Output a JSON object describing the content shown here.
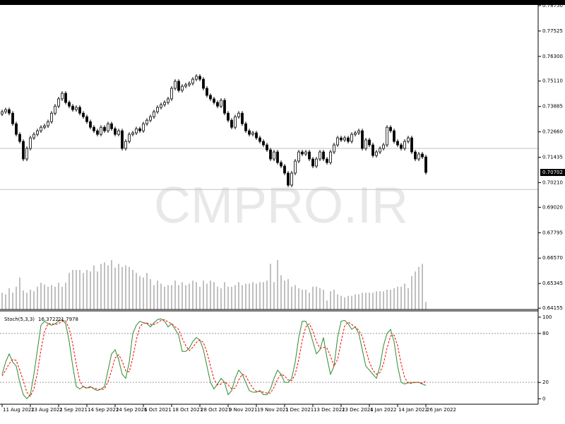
{
  "chart_data": [
    {
      "type": "candlestick",
      "watermark": "CMPRO.IR",
      "categories": [
        "11 Aug 2021",
        null,
        null,
        null,
        null,
        null,
        null,
        null,
        "23 Aug 2021",
        null,
        null,
        null,
        null,
        null,
        null,
        null,
        "2 Sep 2021",
        null,
        null,
        null,
        null,
        null,
        null,
        null,
        "14 Sep 2021",
        null,
        null,
        null,
        null,
        null,
        null,
        null,
        "24 Sep 2021",
        null,
        null,
        null,
        null,
        null,
        null,
        null,
        "6 Oct 2021",
        null,
        null,
        null,
        null,
        null,
        null,
        null,
        "18 Oct 2021",
        null,
        null,
        null,
        null,
        null,
        null,
        null,
        "28 Oct 2021",
        null,
        null,
        null,
        null,
        null,
        null,
        null,
        "9 Nov 2021",
        null,
        null,
        null,
        null,
        null,
        null,
        null,
        "19 Nov 2021",
        null,
        null,
        null,
        null,
        null,
        null,
        null,
        "1 Dec 2021",
        null,
        null,
        null,
        null,
        null,
        null,
        null,
        "13 Dec 2021",
        null,
        null,
        null,
        null,
        null,
        null,
        null,
        "23 Dec 2021",
        null,
        null,
        null,
        null,
        null,
        null,
        null,
        "4 Jan 2022",
        null,
        null,
        null,
        null,
        null,
        null,
        null,
        "14 Jan 2022",
        null,
        null,
        null,
        null,
        null,
        null,
        null,
        "26 Jan 2022"
      ],
      "open": [
        0.7352,
        0.7363,
        0.7373,
        0.7356,
        0.7305,
        0.7254,
        0.722,
        0.7135,
        0.7186,
        0.7237,
        0.7254,
        0.7271,
        0.7288,
        0.7295,
        0.7315,
        0.7356,
        0.739,
        0.7425,
        0.7452,
        0.7408,
        0.739,
        0.7373,
        0.7384,
        0.7356,
        0.7339,
        0.7315,
        0.7288,
        0.7271,
        0.7254,
        0.7288,
        0.7271,
        0.7305,
        0.7281,
        0.7254,
        0.7271,
        0.7186,
        0.722,
        0.7254,
        0.7261,
        0.7281,
        0.7271,
        0.7305,
        0.7322,
        0.7339,
        0.7363,
        0.7384,
        0.7397,
        0.7408,
        0.7425,
        0.7476,
        0.751,
        0.7466,
        0.7486,
        0.7493,
        0.75,
        0.752,
        0.7534,
        0.752,
        0.7476,
        0.7442,
        0.7425,
        0.7408,
        0.739,
        0.7418,
        0.7356,
        0.7322,
        0.7288,
        0.7339,
        0.7356,
        0.7305,
        0.7271,
        0.7254,
        0.7261,
        0.7237,
        0.722,
        0.7203,
        0.7179,
        0.7135,
        0.7169,
        0.7118,
        0.7101,
        0.7067,
        0.7009,
        0.7067,
        0.7125,
        0.7169,
        0.7159,
        0.7169,
        0.7135,
        0.7101,
        0.7135,
        0.7169,
        0.7135,
        0.7118,
        0.7169,
        0.7203,
        0.7237,
        0.7227,
        0.7237,
        0.722,
        0.7254,
        0.7261,
        0.7271,
        0.7186,
        0.7227,
        0.7203,
        0.7152,
        0.7169,
        0.7186,
        0.7203,
        0.7288,
        0.7271,
        0.722,
        0.7203,
        0.7186,
        0.722,
        0.7237,
        0.7169,
        0.7135,
        0.7159,
        0.7145
      ],
      "high": [
        0.7373,
        0.7383,
        0.7383,
        0.7366,
        0.7315,
        0.7264,
        0.723,
        0.7196,
        0.7247,
        0.7264,
        0.7281,
        0.7298,
        0.7305,
        0.7325,
        0.7366,
        0.74,
        0.7435,
        0.7462,
        0.7462,
        0.7418,
        0.74,
        0.7394,
        0.7394,
        0.7366,
        0.7349,
        0.7325,
        0.7298,
        0.7281,
        0.7298,
        0.7298,
        0.7315,
        0.7315,
        0.7291,
        0.7281,
        0.7281,
        0.723,
        0.7264,
        0.7271,
        0.7291,
        0.7291,
        0.7315,
        0.7332,
        0.7349,
        0.7373,
        0.7394,
        0.7407,
        0.7418,
        0.7435,
        0.7486,
        0.752,
        0.752,
        0.7496,
        0.7503,
        0.751,
        0.753,
        0.7544,
        0.7544,
        0.753,
        0.7486,
        0.7452,
        0.7435,
        0.7418,
        0.7428,
        0.7428,
        0.7366,
        0.7332,
        0.7349,
        0.7366,
        0.7366,
        0.7315,
        0.7281,
        0.7271,
        0.7271,
        0.7247,
        0.723,
        0.7213,
        0.7189,
        0.7179,
        0.7179,
        0.7128,
        0.7111,
        0.7077,
        0.7077,
        0.7135,
        0.7179,
        0.7179,
        0.7179,
        0.7179,
        0.7145,
        0.7145,
        0.7179,
        0.7179,
        0.7145,
        0.7179,
        0.7213,
        0.7247,
        0.7247,
        0.7247,
        0.7247,
        0.7264,
        0.7271,
        0.7281,
        0.7281,
        0.7237,
        0.7237,
        0.7213,
        0.7179,
        0.7196,
        0.7213,
        0.7298,
        0.7298,
        0.7281,
        0.723,
        0.7213,
        0.723,
        0.7247,
        0.7247,
        0.7179,
        0.7169,
        0.7169,
        0.7155
      ],
      "low": [
        0.7342,
        0.7353,
        0.7346,
        0.7295,
        0.7244,
        0.721,
        0.7125,
        0.7125,
        0.7176,
        0.7227,
        0.7244,
        0.7261,
        0.7278,
        0.7285,
        0.7305,
        0.7346,
        0.738,
        0.7415,
        0.7398,
        0.738,
        0.7363,
        0.7363,
        0.7346,
        0.7329,
        0.7305,
        0.7278,
        0.7261,
        0.7244,
        0.7244,
        0.7261,
        0.7261,
        0.7271,
        0.7244,
        0.7244,
        0.7176,
        0.7176,
        0.721,
        0.7244,
        0.7251,
        0.7261,
        0.7261,
        0.7295,
        0.7312,
        0.7329,
        0.7353,
        0.7374,
        0.7387,
        0.7398,
        0.7415,
        0.7466,
        0.7456,
        0.7456,
        0.7476,
        0.7483,
        0.749,
        0.751,
        0.751,
        0.7466,
        0.7432,
        0.7415,
        0.7398,
        0.738,
        0.738,
        0.7346,
        0.7312,
        0.7278,
        0.7278,
        0.7329,
        0.7295,
        0.7261,
        0.7244,
        0.7244,
        0.7227,
        0.721,
        0.7193,
        0.7169,
        0.7125,
        0.7125,
        0.7108,
        0.7091,
        0.7057,
        0.6999,
        0.6999,
        0.7057,
        0.7115,
        0.7149,
        0.7149,
        0.7125,
        0.7091,
        0.7091,
        0.7125,
        0.7125,
        0.7108,
        0.7108,
        0.7159,
        0.7193,
        0.7217,
        0.7217,
        0.721,
        0.721,
        0.7244,
        0.7251,
        0.7176,
        0.7176,
        0.7193,
        0.7142,
        0.7142,
        0.7159,
        0.7176,
        0.7193,
        0.7261,
        0.721,
        0.7193,
        0.7176,
        0.7176,
        0.721,
        0.7159,
        0.7125,
        0.7125,
        0.7135,
        0.706
      ],
      "close": [
        0.7363,
        0.7373,
        0.7356,
        0.7305,
        0.7254,
        0.722,
        0.7135,
        0.7186,
        0.7237,
        0.7254,
        0.7271,
        0.7288,
        0.7295,
        0.7315,
        0.7356,
        0.739,
        0.7425,
        0.7452,
        0.7408,
        0.739,
        0.7373,
        0.7384,
        0.7356,
        0.7339,
        0.7315,
        0.7288,
        0.7271,
        0.7254,
        0.7288,
        0.7271,
        0.7305,
        0.7281,
        0.7254,
        0.7271,
        0.7186,
        0.722,
        0.7254,
        0.7261,
        0.7281,
        0.7271,
        0.7305,
        0.7322,
        0.7339,
        0.7363,
        0.7384,
        0.7397,
        0.7408,
        0.7425,
        0.7476,
        0.751,
        0.7466,
        0.7486,
        0.7493,
        0.75,
        0.752,
        0.7534,
        0.752,
        0.7476,
        0.7442,
        0.7425,
        0.7408,
        0.739,
        0.7418,
        0.7356,
        0.7322,
        0.7288,
        0.7339,
        0.7356,
        0.7305,
        0.7271,
        0.7254,
        0.7261,
        0.7237,
        0.722,
        0.7203,
        0.7179,
        0.7135,
        0.7169,
        0.7118,
        0.7101,
        0.7067,
        0.7009,
        0.7067,
        0.7125,
        0.7169,
        0.7159,
        0.7169,
        0.7135,
        0.7101,
        0.7135,
        0.7169,
        0.7135,
        0.7118,
        0.7169,
        0.7203,
        0.7237,
        0.7227,
        0.7237,
        0.722,
        0.7254,
        0.7261,
        0.7271,
        0.7186,
        0.7227,
        0.7203,
        0.7152,
        0.7169,
        0.7186,
        0.7203,
        0.7288,
        0.7271,
        0.722,
        0.7203,
        0.7186,
        0.722,
        0.7237,
        0.7169,
        0.7135,
        0.7159,
        0.7145,
        0.70702
      ],
      "volume": [
        22,
        20,
        28,
        22,
        30,
        42,
        25,
        22,
        26,
        24,
        30,
        35,
        33,
        30,
        32,
        30,
        35,
        30,
        35,
        48,
        52,
        52,
        52,
        48,
        52,
        50,
        58,
        50,
        60,
        62,
        58,
        65,
        55,
        60,
        56,
        58,
        56,
        52,
        48,
        44,
        42,
        48,
        40,
        32,
        38,
        34,
        30,
        32,
        32,
        38,
        32,
        36,
        32,
        34,
        38,
        36,
        30,
        38,
        34,
        38,
        36,
        30,
        28,
        36,
        30,
        30,
        32,
        36,
        32,
        34,
        34,
        36,
        34,
        36,
        36,
        38,
        60,
        36,
        65,
        45,
        38,
        40,
        30,
        32,
        28,
        26,
        26,
        22,
        30,
        30,
        28,
        26,
        12,
        24,
        26,
        20,
        18,
        16,
        18,
        18,
        20,
        20,
        22,
        22,
        22,
        22,
        24,
        24,
        24,
        26,
        26,
        28,
        30,
        30,
        34,
        28,
        44,
        50,
        56,
        60,
        10
      ],
      "ylim": [
        0.6409,
        0.7902
      ],
      "yticks": [
        {
          "value": 0.7875,
          "label": "0.78750"
        },
        0.77525,
        {
          "value": 0.763,
          "label": "0.76300"
        },
        {
          "value": 0.7511,
          "label": "0.75110"
        },
        0.73885,
        {
          "value": 0.7266,
          "label": "0.72660"
        },
        0.71435,
        {
          "value": 0.7021,
          "label": "0.70210"
        },
        {
          "value": 0.6902,
          "label": "0.69020"
        },
        0.67795,
        {
          "value": 0.6657,
          "label": "0.66570"
        },
        0.65345,
        0.64155
      ],
      "hlines": [
        0.7186,
        0.6988
      ],
      "bull_color": "#ffffff",
      "bear_color": "#000000",
      "volume_color": "#808080"
    },
    {
      "type": "line",
      "title": "Stoch(5,3,3)",
      "series": [
        {
          "color": "#2e8b2e",
          "dash": false,
          "values": [
            30,
            45,
            55,
            45,
            40,
            20,
            5,
            0,
            5,
            30,
            60,
            90,
            95,
            92,
            90,
            92,
            95,
            97,
            92,
            70,
            40,
            15,
            12,
            15,
            13,
            15,
            12,
            10,
            12,
            15,
            35,
            55,
            60,
            48,
            30,
            25,
            45,
            80,
            90,
            95,
            93,
            92,
            88,
            93,
            97,
            98,
            95,
            88,
            92,
            85,
            78,
            58,
            58,
            62,
            70,
            75,
            72,
            60,
            40,
            20,
            12,
            18,
            25,
            20,
            5,
            10,
            25,
            35,
            30,
            20,
            10,
            8,
            8,
            10,
            5,
            5,
            12,
            25,
            35,
            30,
            20,
            20,
            25,
            45,
            75,
            95,
            95,
            85,
            70,
            55,
            60,
            75,
            50,
            30,
            40,
            75,
            95,
            96,
            92,
            85,
            88,
            80,
            60,
            40,
            35,
            30,
            25,
            40,
            65,
            80,
            85,
            70,
            40,
            20,
            18,
            20,
            20,
            20,
            20,
            18,
            16.3722
          ]
        },
        {
          "color": "#ff0000",
          "dash": true,
          "values": [
            28,
            35,
            43,
            48,
            47,
            35,
            22,
            8,
            3,
            12,
            32,
            60,
            82,
            92,
            92,
            91,
            92,
            95,
            95,
            86,
            67,
            42,
            22,
            14,
            13,
            14,
            13,
            12,
            11,
            12,
            21,
            35,
            50,
            54,
            46,
            34,
            33,
            50,
            72,
            88,
            93,
            93,
            91,
            91,
            93,
            96,
            97,
            94,
            92,
            88,
            85,
            74,
            65,
            59,
            63,
            69,
            72,
            69,
            57,
            40,
            24,
            17,
            18,
            21,
            17,
            12,
            13,
            23,
            30,
            28,
            20,
            13,
            9,
            9,
            8,
            7,
            7,
            14,
            24,
            30,
            28,
            23,
            22,
            30,
            48,
            72,
            88,
            92,
            83,
            70,
            62,
            63,
            62,
            52,
            40,
            48,
            70,
            89,
            94,
            91,
            88,
            84,
            76,
            60,
            45,
            35,
            30,
            32,
            43,
            62,
            77,
            78,
            65,
            43,
            26,
            19,
            19,
            20,
            20,
            19,
            21.7978
          ]
        }
      ],
      "ylim": [
        -6.7,
        107.6
      ],
      "yticks": [
        100,
        80,
        20,
        0
      ],
      "levels": [
        80,
        20
      ]
    }
  ]
}
